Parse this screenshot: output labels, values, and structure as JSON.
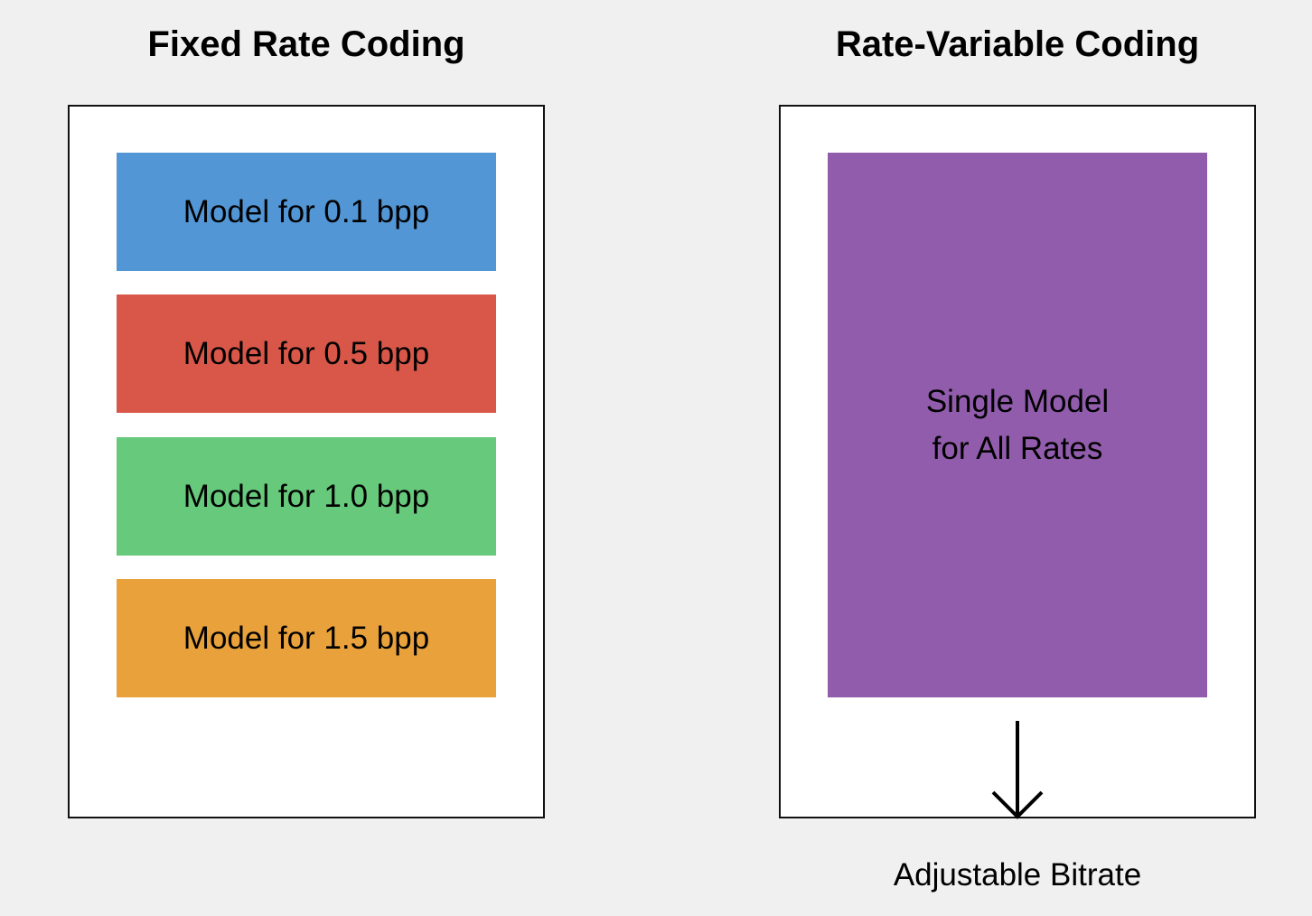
{
  "left_panel": {
    "heading": "Fixed Rate Coding",
    "models": [
      {
        "label": "Model for 0.1 bpp",
        "color": "#5296d6"
      },
      {
        "label": "Model for 0.5 bpp",
        "color": "#d85748"
      },
      {
        "label": "Model for 1.0 bpp",
        "color": "#66c97b"
      },
      {
        "label": "Model for 1.5 bpp",
        "color": "#e9a23b"
      }
    ]
  },
  "right_panel": {
    "heading": "Rate-Variable Coding",
    "model": {
      "line1": "Single Model",
      "line2": "for All Rates",
      "color": "#925cad"
    },
    "caption": "Adjustable Bitrate",
    "arrow_icon": "arrow-down-icon"
  }
}
